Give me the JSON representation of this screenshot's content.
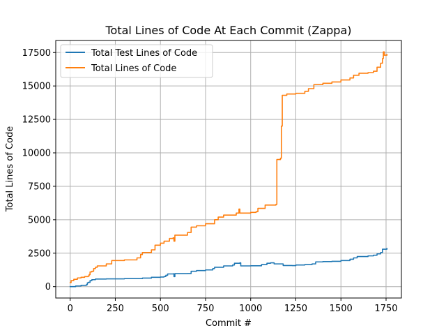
{
  "chart_data": {
    "type": "line",
    "title": "Total Lines of Code At Each Commit (Zappa)",
    "xlabel": "Commit #",
    "ylabel": "Total Lines of Code",
    "xlim": [
      -80,
      1835
    ],
    "ylim": [
      -850,
      18400
    ],
    "xticks": [
      0,
      250,
      500,
      750,
      1000,
      1250,
      1500,
      1750
    ],
    "yticks": [
      0,
      2500,
      5000,
      7500,
      10000,
      12500,
      15000,
      17500
    ],
    "xtick_labels": [
      "0",
      "250",
      "500",
      "750",
      "1000",
      "1250",
      "1500",
      "1750"
    ],
    "ytick_labels": [
      "0",
      "2500",
      "5000",
      "7500",
      "10000",
      "12500",
      "15000",
      "17500"
    ],
    "grid": true,
    "legend_position": "upper-left",
    "series": [
      {
        "name": "Total Test Lines of Code",
        "color": "#1f77b4",
        "points": [
          [
            0,
            0
          ],
          [
            30,
            50
          ],
          [
            60,
            100
          ],
          [
            90,
            150
          ],
          [
            95,
            280
          ],
          [
            100,
            320
          ],
          [
            110,
            450
          ],
          [
            120,
            520
          ],
          [
            140,
            570
          ],
          [
            200,
            580
          ],
          [
            300,
            600
          ],
          [
            400,
            640
          ],
          [
            450,
            700
          ],
          [
            500,
            720
          ],
          [
            520,
            760
          ],
          [
            530,
            850
          ],
          [
            540,
            950
          ],
          [
            570,
            960
          ],
          [
            575,
            750
          ],
          [
            580,
            970
          ],
          [
            650,
            980
          ],
          [
            670,
            1150
          ],
          [
            700,
            1200
          ],
          [
            750,
            1250
          ],
          [
            790,
            1350
          ],
          [
            800,
            1450
          ],
          [
            850,
            1550
          ],
          [
            900,
            1620
          ],
          [
            910,
            1750
          ],
          [
            940,
            1780
          ],
          [
            945,
            1550
          ],
          [
            1000,
            1560
          ],
          [
            1060,
            1650
          ],
          [
            1090,
            1750
          ],
          [
            1110,
            1780
          ],
          [
            1130,
            1700
          ],
          [
            1150,
            1700
          ],
          [
            1170,
            1700
          ],
          [
            1180,
            1580
          ],
          [
            1230,
            1570
          ],
          [
            1250,
            1620
          ],
          [
            1300,
            1650
          ],
          [
            1340,
            1700
          ],
          [
            1360,
            1850
          ],
          [
            1400,
            1870
          ],
          [
            1450,
            1890
          ],
          [
            1500,
            1950
          ],
          [
            1550,
            2050
          ],
          [
            1570,
            2150
          ],
          [
            1590,
            2250
          ],
          [
            1650,
            2300
          ],
          [
            1680,
            2350
          ],
          [
            1700,
            2450
          ],
          [
            1720,
            2550
          ],
          [
            1730,
            2800
          ],
          [
            1755,
            2850
          ]
        ]
      },
      {
        "name": "Total Lines of Code",
        "color": "#ff7f0e",
        "points": [
          [
            0,
            300
          ],
          [
            5,
            450
          ],
          [
            20,
            550
          ],
          [
            40,
            650
          ],
          [
            60,
            700
          ],
          [
            80,
            750
          ],
          [
            100,
            800
          ],
          [
            105,
            900
          ],
          [
            110,
            1100
          ],
          [
            120,
            1150
          ],
          [
            130,
            1350
          ],
          [
            140,
            1450
          ],
          [
            150,
            1550
          ],
          [
            200,
            1700
          ],
          [
            230,
            1950
          ],
          [
            300,
            2000
          ],
          [
            370,
            2150
          ],
          [
            390,
            2400
          ],
          [
            400,
            2550
          ],
          [
            450,
            2750
          ],
          [
            470,
            3100
          ],
          [
            500,
            3250
          ],
          [
            520,
            3400
          ],
          [
            550,
            3600
          ],
          [
            570,
            3650
          ],
          [
            575,
            3400
          ],
          [
            580,
            3850
          ],
          [
            650,
            4050
          ],
          [
            670,
            4450
          ],
          [
            700,
            4550
          ],
          [
            750,
            4700
          ],
          [
            800,
            5000
          ],
          [
            820,
            5200
          ],
          [
            850,
            5350
          ],
          [
            920,
            5500
          ],
          [
            935,
            5800
          ],
          [
            940,
            5500
          ],
          [
            1000,
            5550
          ],
          [
            1030,
            5600
          ],
          [
            1040,
            5850
          ],
          [
            1080,
            6100
          ],
          [
            1140,
            6150
          ],
          [
            1145,
            9500
          ],
          [
            1165,
            9600
          ],
          [
            1170,
            12000
          ],
          [
            1175,
            14300
          ],
          [
            1200,
            14400
          ],
          [
            1250,
            14450
          ],
          [
            1300,
            14600
          ],
          [
            1320,
            14800
          ],
          [
            1350,
            15100
          ],
          [
            1400,
            15200
          ],
          [
            1450,
            15300
          ],
          [
            1500,
            15450
          ],
          [
            1550,
            15600
          ],
          [
            1570,
            15800
          ],
          [
            1600,
            15950
          ],
          [
            1650,
            16000
          ],
          [
            1680,
            16100
          ],
          [
            1700,
            16400
          ],
          [
            1720,
            16700
          ],
          [
            1730,
            17050
          ],
          [
            1735,
            17550
          ],
          [
            1740,
            17300
          ],
          [
            1755,
            17350
          ]
        ]
      }
    ]
  }
}
